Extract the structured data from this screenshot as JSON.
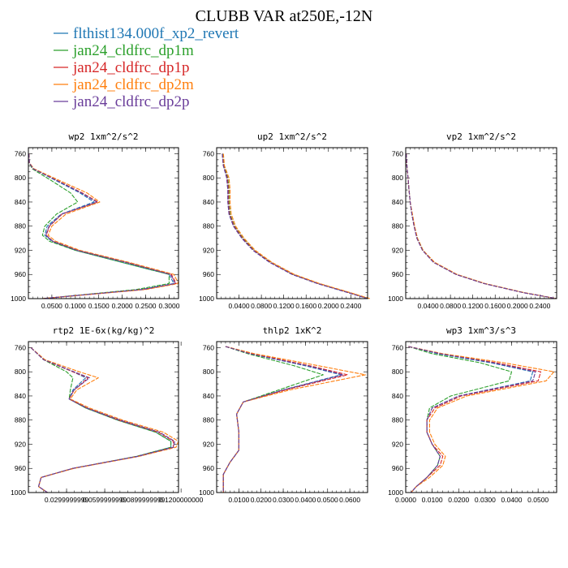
{
  "figure": {
    "title": "CLUBB VAR at250E,-12N",
    "legend": [
      {
        "label": "flthist134.000f_xp2_revert",
        "color": "#1f77b4"
      },
      {
        "label": "jan24_cldfrc_dp1m",
        "color": "#2ca02c"
      },
      {
        "label": "jan24_cldfrc_dp1p",
        "color": "#d62728"
      },
      {
        "label": "jan24_cldfrc_dp2m",
        "color": "#ff7f0e"
      },
      {
        "label": "jan24_cldfrc_dp2p",
        "color": "#6a3d9a"
      }
    ]
  },
  "chart_data": [
    {
      "type": "line",
      "title": "wp2  1xm^2/s^2",
      "xlim": [
        0,
        0.32
      ],
      "ylim": [
        1000,
        750
      ],
      "xticks": [
        0.05,
        0.1,
        0.15,
        0.2,
        0.25,
        0.3
      ],
      "xticklabels": [
        "0.0500",
        "0.1000",
        "0.1500",
        "0.2000",
        "0.2500",
        "0.3000"
      ],
      "yticks": [
        760,
        800,
        840,
        880,
        920,
        960,
        1000
      ],
      "y": [
        760,
        775,
        785,
        805,
        825,
        840,
        860,
        880,
        895,
        905,
        920,
        940,
        960,
        975,
        985,
        1000
      ],
      "series": [
        {
          "color": "#1f77b4",
          "values": [
            0.001,
            0.002,
            0.01,
            0.06,
            0.11,
            0.14,
            0.07,
            0.04,
            0.035,
            0.05,
            0.1,
            0.2,
            0.3,
            0.31,
            0.24,
            0.03
          ]
        },
        {
          "color": "#2ca02c",
          "values": [
            0.001,
            0.002,
            0.008,
            0.05,
            0.09,
            0.105,
            0.06,
            0.035,
            0.03,
            0.045,
            0.1,
            0.2,
            0.3,
            0.3,
            0.23,
            0.03
          ]
        },
        {
          "color": "#d62728",
          "values": [
            0.001,
            0.002,
            0.01,
            0.063,
            0.115,
            0.148,
            0.072,
            0.045,
            0.038,
            0.052,
            0.105,
            0.21,
            0.305,
            0.315,
            0.245,
            0.03
          ]
        },
        {
          "color": "#ff7f0e",
          "values": [
            0.001,
            0.002,
            0.012,
            0.068,
            0.125,
            0.152,
            0.08,
            0.05,
            0.042,
            0.058,
            0.11,
            0.215,
            0.31,
            0.32,
            0.25,
            0.03
          ]
        },
        {
          "color": "#6a3d9a",
          "values": [
            0.001,
            0.002,
            0.01,
            0.062,
            0.113,
            0.146,
            0.071,
            0.044,
            0.037,
            0.052,
            0.104,
            0.208,
            0.303,
            0.313,
            0.243,
            0.03
          ]
        }
      ]
    },
    {
      "type": "line",
      "title": "up2  1xm^2/s^2",
      "xlim": [
        0,
        0.27
      ],
      "ylim": [
        1000,
        750
      ],
      "xticks": [
        0.04,
        0.08,
        0.12,
        0.16,
        0.2,
        0.24
      ],
      "xticklabels": [
        "0.0400",
        "0.0800",
        "0.1200",
        "0.1600",
        "0.2000",
        "0.2400"
      ],
      "yticks": [
        760,
        800,
        840,
        880,
        920,
        960,
        1000
      ],
      "y": [
        760,
        780,
        800,
        820,
        840,
        860,
        880,
        900,
        920,
        940,
        960,
        975,
        990,
        1000
      ],
      "series": [
        {
          "color": "#1f77b4",
          "values": [
            0.01,
            0.012,
            0.018,
            0.02,
            0.02,
            0.022,
            0.03,
            0.045,
            0.065,
            0.095,
            0.135,
            0.18,
            0.235,
            0.27
          ]
        },
        {
          "color": "#2ca02c",
          "values": [
            0.011,
            0.013,
            0.02,
            0.022,
            0.022,
            0.024,
            0.032,
            0.047,
            0.067,
            0.097,
            0.137,
            0.182,
            0.237,
            0.272
          ]
        },
        {
          "color": "#d62728",
          "values": [
            0.01,
            0.012,
            0.019,
            0.021,
            0.021,
            0.023,
            0.031,
            0.046,
            0.066,
            0.096,
            0.136,
            0.181,
            0.236,
            0.271
          ]
        },
        {
          "color": "#ff7f0e",
          "values": [
            0.012,
            0.014,
            0.022,
            0.024,
            0.024,
            0.026,
            0.034,
            0.049,
            0.069,
            0.099,
            0.139,
            0.184,
            0.239,
            0.274
          ]
        },
        {
          "color": "#6a3d9a",
          "values": [
            0.01,
            0.012,
            0.018,
            0.02,
            0.02,
            0.022,
            0.03,
            0.045,
            0.065,
            0.095,
            0.135,
            0.18,
            0.235,
            0.27
          ]
        }
      ]
    },
    {
      "type": "line",
      "title": "vp2  1xm^2/s^2",
      "xlim": [
        0,
        0.27
      ],
      "ylim": [
        1000,
        750
      ],
      "xticks": [
        0.04,
        0.08,
        0.12,
        0.16,
        0.2,
        0.24
      ],
      "xticklabels": [
        "0.0400",
        "0.0800",
        "0.1200",
        "0.1600",
        "0.2000",
        "0.2400"
      ],
      "yticks": [
        760,
        800,
        840,
        880,
        920,
        960,
        1000
      ],
      "y": [
        760,
        780,
        800,
        820,
        840,
        860,
        880,
        900,
        920,
        940,
        960,
        975,
        990,
        1000
      ],
      "series": [
        {
          "color": "#1f77b4",
          "values": [
            0.001,
            0.002,
            0.004,
            0.006,
            0.008,
            0.011,
            0.015,
            0.02,
            0.03,
            0.05,
            0.09,
            0.14,
            0.21,
            0.27
          ]
        },
        {
          "color": "#2ca02c",
          "values": [
            0.001,
            0.002,
            0.004,
            0.006,
            0.008,
            0.011,
            0.015,
            0.021,
            0.031,
            0.051,
            0.091,
            0.141,
            0.211,
            0.27
          ]
        },
        {
          "color": "#d62728",
          "values": [
            0.001,
            0.002,
            0.004,
            0.006,
            0.008,
            0.011,
            0.015,
            0.02,
            0.03,
            0.05,
            0.09,
            0.14,
            0.21,
            0.27
          ]
        },
        {
          "color": "#ff7f0e",
          "values": [
            0.001,
            0.002,
            0.004,
            0.006,
            0.008,
            0.012,
            0.016,
            0.021,
            0.031,
            0.052,
            0.092,
            0.142,
            0.212,
            0.27
          ]
        },
        {
          "color": "#6a3d9a",
          "values": [
            0.001,
            0.002,
            0.004,
            0.006,
            0.008,
            0.011,
            0.015,
            0.02,
            0.03,
            0.05,
            0.09,
            0.14,
            0.21,
            0.27
          ]
        }
      ]
    },
    {
      "type": "line",
      "title": "rtp2  1E-6x(kg/kg)^2",
      "xlim": [
        0,
        0.118
      ],
      "ylim": [
        1000,
        750
      ],
      "xticks": [
        0.03,
        0.06,
        0.09,
        0.12
      ],
      "xticklabels": [
        "0.0299999999",
        "0.0599999999",
        "0.0899999999",
        "0.1200000000"
      ],
      "yticks": [
        760,
        800,
        840,
        880,
        920,
        960,
        1000
      ],
      "y": [
        760,
        780,
        800,
        810,
        830,
        845,
        860,
        880,
        900,
        915,
        925,
        940,
        960,
        975,
        990,
        1000
      ],
      "series": [
        {
          "color": "#1f77b4",
          "values": [
            0.002,
            0.012,
            0.035,
            0.045,
            0.035,
            0.032,
            0.045,
            0.07,
            0.1,
            0.112,
            0.112,
            0.085,
            0.035,
            0.01,
            0.008,
            0.015
          ]
        },
        {
          "color": "#2ca02c",
          "values": [
            0.002,
            0.012,
            0.03,
            0.035,
            0.033,
            0.032,
            0.045,
            0.07,
            0.1,
            0.112,
            0.112,
            0.085,
            0.035,
            0.01,
            0.008,
            0.015
          ]
        },
        {
          "color": "#d62728",
          "values": [
            0.002,
            0.012,
            0.035,
            0.047,
            0.036,
            0.032,
            0.046,
            0.071,
            0.102,
            0.114,
            0.114,
            0.086,
            0.035,
            0.01,
            0.008,
            0.015
          ]
        },
        {
          "color": "#ff7f0e",
          "values": [
            0.002,
            0.013,
            0.04,
            0.055,
            0.038,
            0.033,
            0.048,
            0.074,
            0.106,
            0.118,
            0.116,
            0.087,
            0.036,
            0.01,
            0.008,
            0.015
          ]
        },
        {
          "color": "#6a3d9a",
          "values": [
            0.002,
            0.012,
            0.036,
            0.048,
            0.036,
            0.032,
            0.046,
            0.072,
            0.103,
            0.115,
            0.114,
            0.086,
            0.035,
            0.01,
            0.008,
            0.015
          ]
        }
      ]
    },
    {
      "type": "line",
      "title": "thlp2  1xK^2",
      "xlim": [
        0,
        0.068
      ],
      "ylim": [
        1000,
        750
      ],
      "xticks": [
        0.01,
        0.02,
        0.03,
        0.04,
        0.05,
        0.06
      ],
      "xticklabels": [
        "0.0100",
        "0.0200",
        "0.0300",
        "0.0400",
        "0.0500",
        "0.0600"
      ],
      "yticks": [
        760,
        800,
        840,
        880,
        920,
        960,
        1000
      ],
      "y": [
        758,
        770,
        790,
        805,
        830,
        850,
        870,
        900,
        930,
        950,
        970,
        990,
        1000
      ],
      "series": [
        {
          "color": "#1f77b4",
          "values": [
            0.004,
            0.015,
            0.04,
            0.056,
            0.03,
            0.012,
            0.009,
            0.01,
            0.01,
            0.006,
            0.003,
            0.003,
            0.003
          ]
        },
        {
          "color": "#2ca02c",
          "values": [
            0.004,
            0.014,
            0.035,
            0.048,
            0.028,
            0.012,
            0.009,
            0.01,
            0.01,
            0.006,
            0.003,
            0.003,
            0.003
          ]
        },
        {
          "color": "#d62728",
          "values": [
            0.004,
            0.016,
            0.042,
            0.059,
            0.031,
            0.012,
            0.009,
            0.01,
            0.01,
            0.006,
            0.003,
            0.003,
            0.003
          ]
        },
        {
          "color": "#ff7f0e",
          "values": [
            0.004,
            0.017,
            0.046,
            0.067,
            0.033,
            0.012,
            0.009,
            0.01,
            0.01,
            0.006,
            0.003,
            0.003,
            0.003
          ]
        },
        {
          "color": "#6a3d9a",
          "values": [
            0.004,
            0.015,
            0.041,
            0.057,
            0.03,
            0.012,
            0.009,
            0.01,
            0.01,
            0.006,
            0.003,
            0.003,
            0.003
          ]
        }
      ]
    },
    {
      "type": "line",
      "title": "wp3  1xm^3/s^3",
      "xlim": [
        0,
        0.057
      ],
      "ylim": [
        1000,
        750
      ],
      "xticks": [
        0,
        0.01,
        0.02,
        0.03,
        0.04,
        0.05
      ],
      "xticklabels": [
        "0.0000",
        "0.0100",
        "0.0200",
        "0.0300",
        "0.0400",
        "0.0500"
      ],
      "yticks": [
        760,
        800,
        840,
        880,
        920,
        960,
        1000
      ],
      "y": [
        758,
        770,
        785,
        800,
        815,
        840,
        860,
        880,
        900,
        920,
        940,
        955,
        975,
        990,
        1000
      ],
      "series": [
        {
          "color": "#1f77b4",
          "values": [
            0.001,
            0.012,
            0.032,
            0.048,
            0.047,
            0.02,
            0.01,
            0.008,
            0.008,
            0.01,
            0.013,
            0.012,
            0.008,
            0.004,
            0.002
          ]
        },
        {
          "color": "#2ca02c",
          "values": [
            0.001,
            0.01,
            0.028,
            0.04,
            0.039,
            0.017,
            0.009,
            0.008,
            0.008,
            0.01,
            0.013,
            0.012,
            0.008,
            0.004,
            0.002
          ]
        },
        {
          "color": "#d62728",
          "values": [
            0.001,
            0.013,
            0.034,
            0.051,
            0.05,
            0.021,
            0.011,
            0.008,
            0.008,
            0.01,
            0.014,
            0.013,
            0.008,
            0.004,
            0.002
          ]
        },
        {
          "color": "#ff7f0e",
          "values": [
            0.001,
            0.014,
            0.037,
            0.056,
            0.053,
            0.023,
            0.012,
            0.009,
            0.009,
            0.011,
            0.015,
            0.014,
            0.009,
            0.004,
            0.002
          ]
        },
        {
          "color": "#6a3d9a",
          "values": [
            0.001,
            0.013,
            0.033,
            0.049,
            0.048,
            0.02,
            0.01,
            0.008,
            0.008,
            0.01,
            0.013,
            0.012,
            0.008,
            0.004,
            0.002
          ]
        }
      ]
    }
  ]
}
